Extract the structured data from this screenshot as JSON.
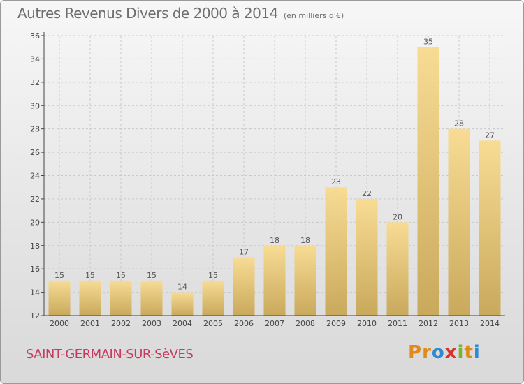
{
  "title": "Autres Revenus Divers de 2000 à 2014",
  "title_unit": "(en milliers d'€)",
  "commune": "SAINT-GERMAIN-SUR-SèVES",
  "logo": {
    "letters": [
      "P",
      "r",
      "o",
      "x",
      "i",
      "t",
      "i"
    ],
    "colors": [
      "#e08a1e",
      "#e08a1e",
      "#2e8bd0",
      "#d9322f",
      "#7ab32e",
      "#e08a1e",
      "#2e8bd0"
    ]
  },
  "colors": {
    "bar": "#eccf80",
    "label": "#555555",
    "axis": "#444444",
    "commune": "#c83a62"
  },
  "chart_data": {
    "type": "bar",
    "categories": [
      "2000",
      "2001",
      "2002",
      "2003",
      "2004",
      "2005",
      "2006",
      "2007",
      "2008",
      "2009",
      "2010",
      "2011",
      "2012",
      "2013",
      "2014"
    ],
    "values": [
      15,
      15,
      15,
      15,
      14,
      15,
      17,
      18,
      18,
      23,
      22,
      20,
      35,
      28,
      27
    ],
    "ylim": [
      12,
      36
    ],
    "yticks": [
      12,
      14,
      16,
      18,
      20,
      22,
      24,
      26,
      28,
      30,
      32,
      34,
      36
    ],
    "grid": true
  }
}
